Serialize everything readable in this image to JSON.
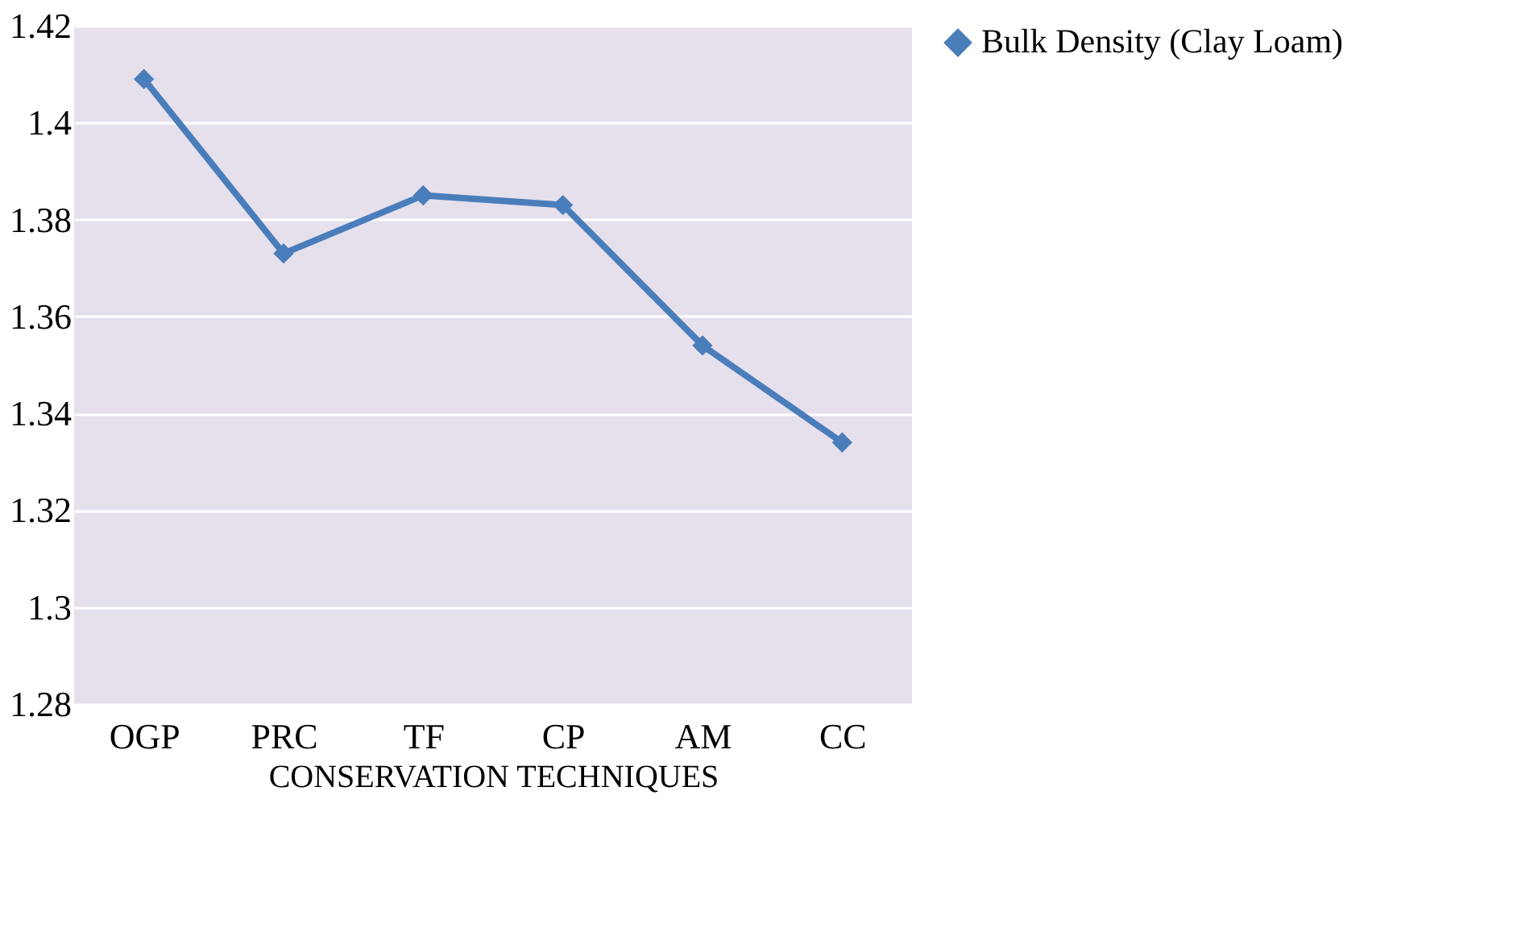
{
  "chart_data": {
    "type": "line",
    "xlabel": "CONSERVATION TECHNIQUES",
    "categories": [
      "OGP",
      "PRC",
      "TF",
      "CP",
      "AM",
      "CC"
    ],
    "series": [
      {
        "name": "Bulk Density (Clay Loam)",
        "color": "#4a7ebb",
        "values": [
          1.409,
          1.373,
          1.385,
          1.383,
          1.354,
          1.334
        ]
      }
    ],
    "ylim": [
      1.28,
      1.42
    ],
    "yticks": [
      1.28,
      1.3,
      1.32,
      1.34,
      1.36,
      1.38,
      1.4,
      1.42
    ],
    "grid": "y",
    "legend": "top right",
    "marker": "diamond",
    "line_style": "solid"
  }
}
